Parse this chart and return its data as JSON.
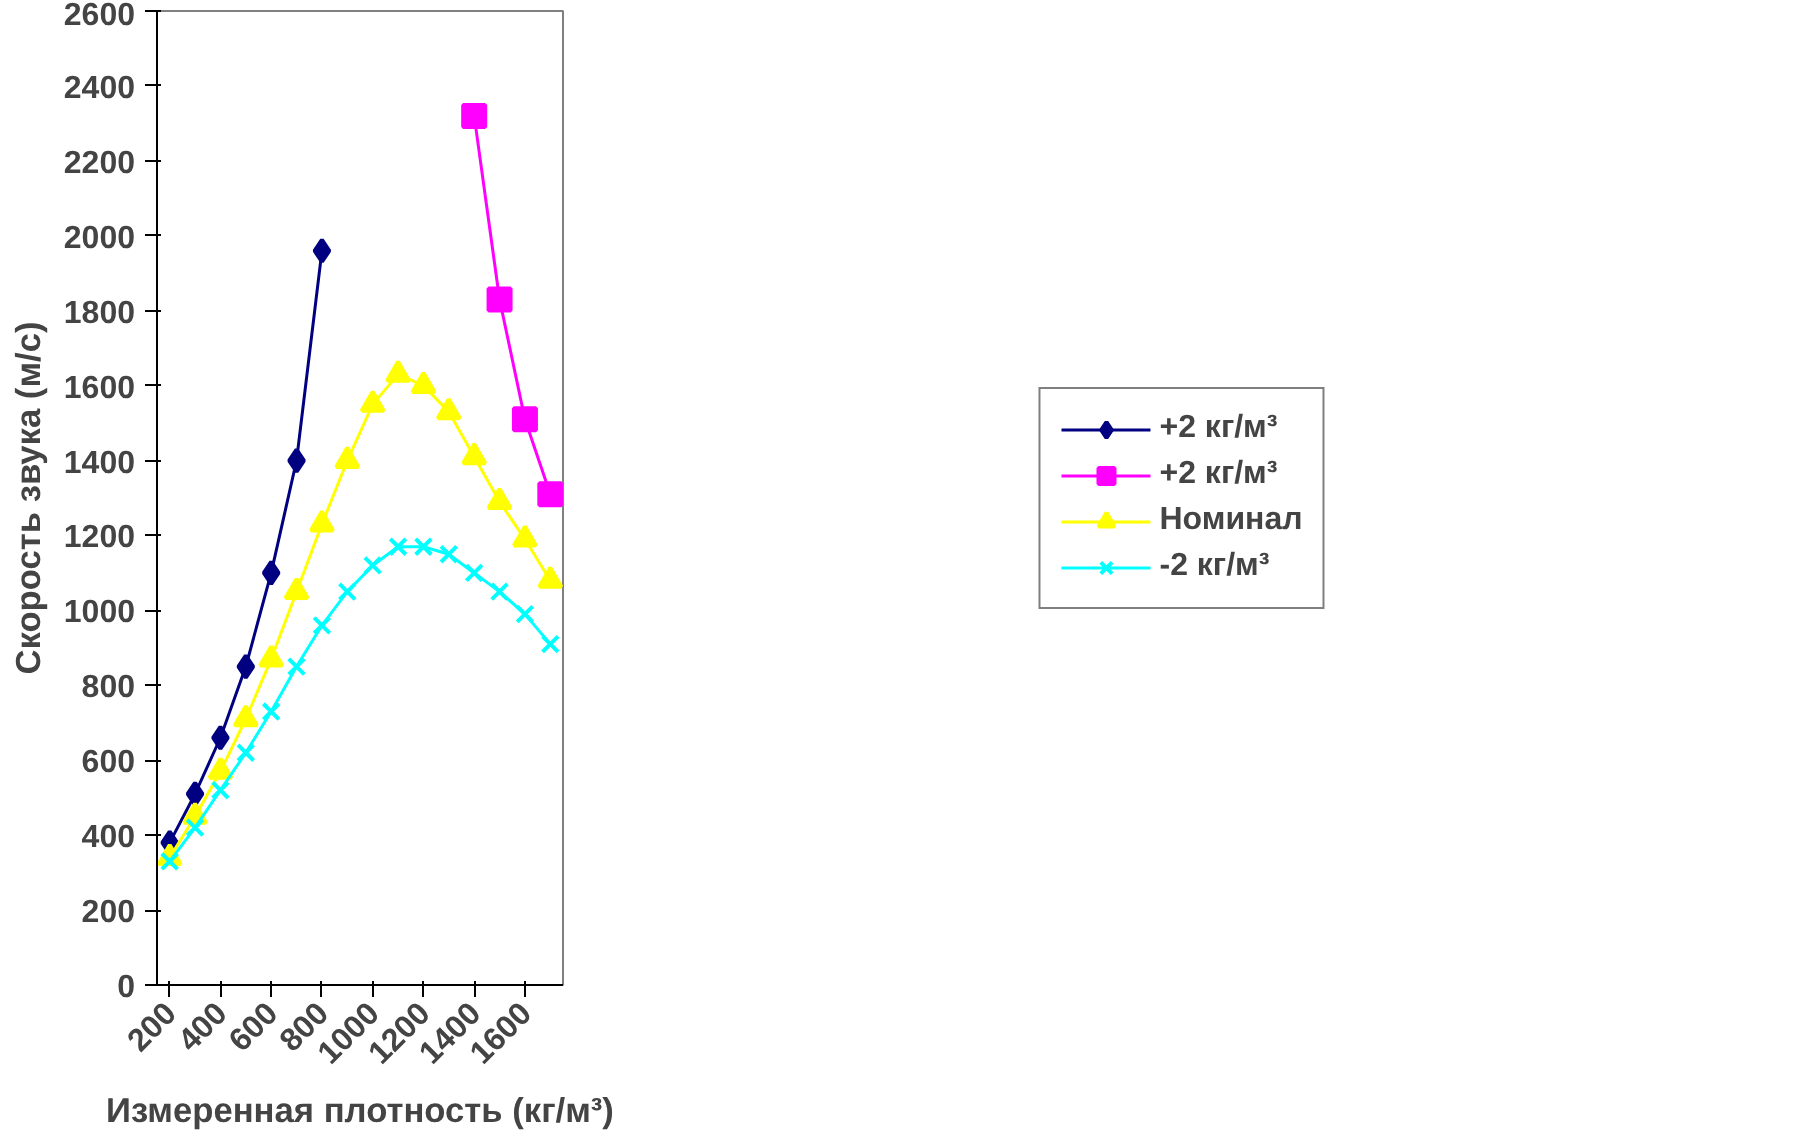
{
  "chart_data": {
    "type": "line",
    "xlabel": "Измеренная плотность (кг/м³)",
    "ylabel": "Скорость звука (м/с)",
    "xlim": [
      150,
      1750
    ],
    "xticks": [
      200,
      400,
      600,
      800,
      1000,
      1200,
      1400,
      1600
    ],
    "ylim": [
      0,
      2600
    ],
    "yticks": [
      0,
      200,
      400,
      600,
      800,
      1000,
      1200,
      1400,
      1600,
      1800,
      2000,
      2200,
      2400,
      2600
    ],
    "grid": false,
    "legend": "right",
    "series": [
      {
        "name": "+2 кг/м³",
        "color": "#000080",
        "marker": "diamond",
        "x": [
          200,
          300,
          400,
          500,
          600,
          700,
          800
        ],
        "values": [
          380,
          510,
          660,
          850,
          1100,
          1400,
          1960
        ]
      },
      {
        "name": "+2 кг/м³",
        "color": "#ff00ff",
        "marker": "square",
        "x": [
          1400,
          1500,
          1600,
          1700
        ],
        "values": [
          2320,
          1830,
          1510,
          1310
        ]
      },
      {
        "name": "Номинал",
        "color": "#ffff00",
        "marker": "triangle",
        "x": [
          200,
          300,
          400,
          500,
          600,
          700,
          800,
          900,
          1000,
          1100,
          1200,
          1300,
          1400,
          1500,
          1600,
          1700
        ],
        "values": [
          340,
          450,
          570,
          710,
          870,
          1050,
          1230,
          1400,
          1550,
          1630,
          1600,
          1530,
          1410,
          1290,
          1190,
          1080
        ]
      },
      {
        "name": "-2 кг/м³",
        "color": "#00ffff",
        "marker": "cross",
        "x": [
          200,
          300,
          400,
          500,
          600,
          700,
          800,
          900,
          1000,
          1100,
          1200,
          1300,
          1400,
          1500,
          1600,
          1700
        ],
        "values": [
          330,
          420,
          520,
          620,
          730,
          850,
          960,
          1050,
          1120,
          1170,
          1170,
          1150,
          1100,
          1050,
          990,
          910
        ]
      }
    ]
  }
}
